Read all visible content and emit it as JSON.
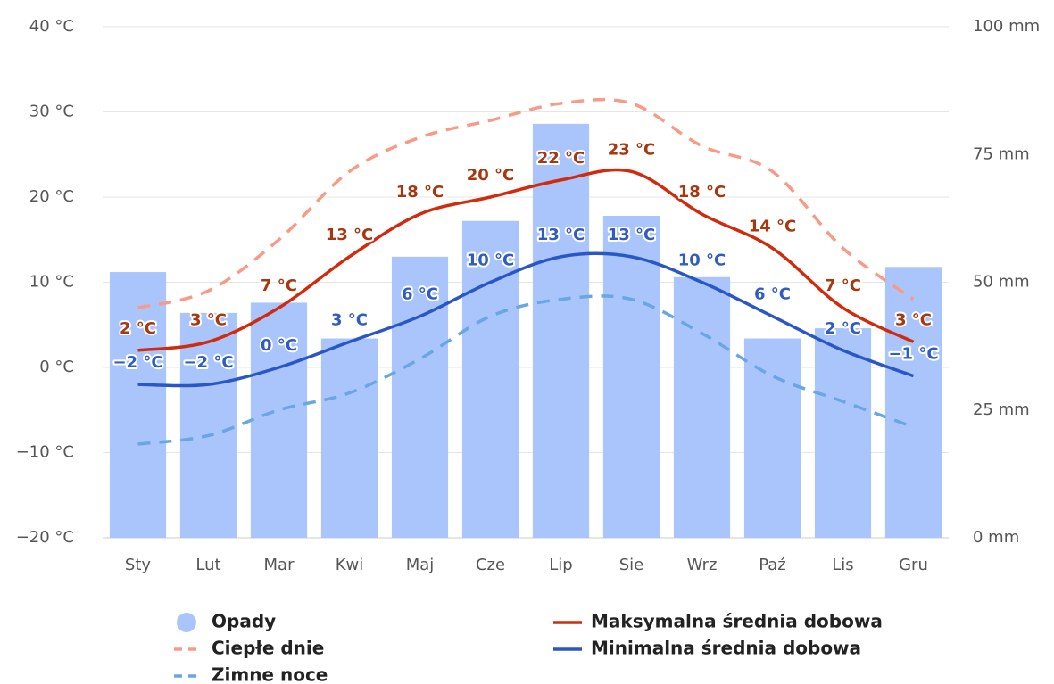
{
  "chart_data": {
    "type": "combo",
    "categories": [
      "Sty",
      "Lut",
      "Mar",
      "Kwi",
      "Maj",
      "Cze",
      "Lip",
      "Sie",
      "Wrz",
      "Paź",
      "Lis",
      "Gru"
    ],
    "ylim": [
      -20,
      40
    ],
    "yticks": [
      {
        "value": -20,
        "label": "−20 °C"
      },
      {
        "value": -10,
        "label": "−10 °C"
      },
      {
        "value": 0,
        "label": "0 °C"
      },
      {
        "value": 10,
        "label": "10 °C"
      },
      {
        "value": 20,
        "label": "20 °C"
      },
      {
        "value": 30,
        "label": "30 °C"
      },
      {
        "value": 40,
        "label": "40 °C"
      }
    ],
    "y2lim": [
      0,
      100
    ],
    "y2ticks": [
      {
        "value": 0,
        "label": "0 mm"
      },
      {
        "value": 25,
        "label": "25 mm"
      },
      {
        "value": 50,
        "label": "50 mm"
      },
      {
        "value": 75,
        "label": "75 mm"
      },
      {
        "value": 100,
        "label": "100 mm"
      }
    ],
    "grid": true,
    "series": [
      {
        "name": "Opady",
        "type": "bar",
        "axis": "y2",
        "color": "#a9c5fb",
        "values": [
          52,
          44,
          46,
          39,
          55,
          62,
          81,
          63,
          51,
          39,
          41,
          53
        ]
      },
      {
        "name": "Ciepłe dnie",
        "type": "line",
        "dashed": true,
        "color": "#f99a86",
        "values": [
          7,
          9,
          15,
          23,
          27,
          29,
          31,
          31,
          26,
          23,
          14,
          8
        ]
      },
      {
        "name": "Zimne noce",
        "type": "line",
        "dashed": true,
        "color": "#6aa6e2",
        "values": [
          -9,
          -8,
          -5,
          -3,
          1,
          6,
          8,
          8,
          4,
          -1,
          -4,
          -7
        ]
      },
      {
        "name": "Maksymalna średnia dobowa",
        "type": "line",
        "color": "#d12a0c",
        "label_color": "#a8360f",
        "values": [
          2,
          3,
          7,
          13,
          18,
          20,
          22,
          23,
          18,
          14,
          7,
          3
        ],
        "value_labels": [
          "2 °C",
          "3 °C",
          "7 °C",
          "13 °C",
          "18 °C",
          "20 °C",
          "22 °C",
          "23 °C",
          "18 °C",
          "14 °C",
          "7 °C",
          "3 °C"
        ]
      },
      {
        "name": "Minimalna średnia dobowa",
        "type": "line",
        "color": "#2b56c5",
        "label_color": "#2f5bc2",
        "values": [
          -2,
          -2,
          0,
          3,
          6,
          10,
          13,
          13,
          10,
          6,
          2,
          -1
        ],
        "value_labels": [
          "−2 °C",
          "−2 °C",
          "0 °C",
          "3 °C",
          "6 °C",
          "10 °C",
          "13 °C",
          "13 °C",
          "10 °C",
          "6 °C",
          "2 °C",
          "−1 °C"
        ]
      }
    ]
  }
}
